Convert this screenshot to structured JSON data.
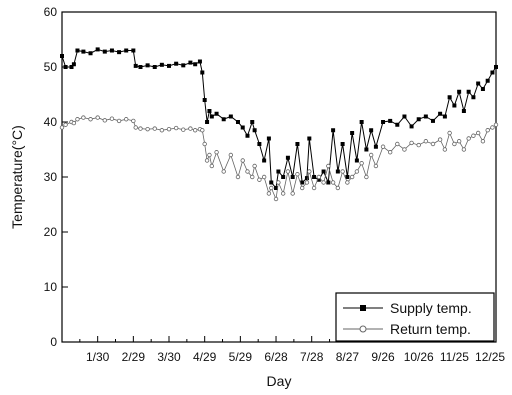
{
  "chart_data": {
    "type": "line",
    "xlabel": "Day",
    "ylabel": "Temperature(°C)",
    "xlim": [
      0,
      365
    ],
    "ylim": [
      0,
      60
    ],
    "x_ticks": [
      {
        "label": "1/30",
        "x": 30
      },
      {
        "label": "2/29",
        "x": 60
      },
      {
        "label": "3/30",
        "x": 90
      },
      {
        "label": "4/29",
        "x": 120
      },
      {
        "label": "5/29",
        "x": 150
      },
      {
        "label": "6/28",
        "x": 180
      },
      {
        "label": "7/28",
        "x": 210
      },
      {
        "label": "8/27",
        "x": 240
      },
      {
        "label": "9/26",
        "x": 270
      },
      {
        "label": "10/26",
        "x": 300
      },
      {
        "label": "11/25",
        "x": 330
      },
      {
        "label": "12/25",
        "x": 360
      }
    ],
    "y_ticks": [
      0,
      10,
      20,
      30,
      40,
      50,
      60
    ],
    "legend_position": "bottom-right",
    "series": [
      {
        "name": "Supply temp.",
        "color": "#000000",
        "marker": "filled-square",
        "x": [
          0,
          3,
          8,
          10,
          13,
          18,
          24,
          30,
          36,
          42,
          48,
          54,
          60,
          62,
          66,
          72,
          78,
          84,
          90,
          96,
          102,
          108,
          112,
          116,
          118,
          120,
          122,
          124,
          126,
          130,
          136,
          142,
          148,
          152,
          156,
          160,
          162,
          166,
          170,
          174,
          176,
          180,
          182,
          186,
          190,
          194,
          198,
          202,
          206,
          208,
          212,
          216,
          220,
          224,
          228,
          232,
          236,
          240,
          244,
          248,
          252,
          256,
          260,
          264,
          270,
          276,
          282,
          288,
          294,
          300,
          306,
          312,
          318,
          322,
          326,
          330,
          334,
          338,
          342,
          346,
          350,
          354,
          358,
          362,
          365
        ],
        "values": [
          52,
          50,
          50,
          50.5,
          53,
          52.8,
          52.5,
          53.2,
          52.8,
          53,
          52.7,
          53,
          53,
          50.2,
          50,
          50.3,
          50,
          50.4,
          50.2,
          50.6,
          50.3,
          50.8,
          50.5,
          51,
          49,
          44,
          40,
          42,
          41,
          41.5,
          40.5,
          41,
          40,
          39,
          37.5,
          40,
          38.5,
          36,
          33,
          37,
          29,
          28,
          31,
          30,
          33.5,
          30,
          36,
          29,
          29.8,
          37,
          30,
          29.5,
          31,
          29,
          38.5,
          31,
          36,
          30,
          38,
          33,
          40,
          35,
          38.5,
          35.5,
          40,
          40.2,
          39.5,
          41,
          39.2,
          40.5,
          41,
          40.2,
          41.5,
          41,
          44.5,
          43,
          45.5,
          42,
          45.5,
          44.5,
          47,
          46,
          47.5,
          49,
          50
        ]
      },
      {
        "name": "Return temp.",
        "color": "#666666",
        "marker": "open-circle",
        "x": [
          0,
          3,
          8,
          10,
          13,
          18,
          24,
          30,
          36,
          42,
          48,
          54,
          60,
          62,
          66,
          72,
          78,
          84,
          90,
          96,
          102,
          108,
          112,
          116,
          118,
          120,
          122,
          124,
          126,
          130,
          136,
          142,
          148,
          152,
          156,
          160,
          162,
          166,
          170,
          174,
          176,
          180,
          182,
          186,
          190,
          194,
          198,
          202,
          206,
          208,
          212,
          216,
          220,
          224,
          228,
          232,
          236,
          240,
          244,
          248,
          252,
          256,
          260,
          264,
          270,
          276,
          282,
          288,
          294,
          300,
          306,
          312,
          318,
          322,
          326,
          330,
          334,
          338,
          342,
          346,
          350,
          354,
          358,
          362,
          365
        ],
        "values": [
          39,
          39.5,
          40,
          39.8,
          40.5,
          40.8,
          40.5,
          40.8,
          40.3,
          40.6,
          40.2,
          40.5,
          40.2,
          39,
          38.8,
          38.7,
          38.8,
          38.5,
          38.7,
          38.9,
          38.6,
          38.8,
          38.5,
          38.7,
          38.5,
          36,
          33,
          34,
          32,
          34.5,
          31,
          34,
          30,
          33,
          31,
          30,
          32,
          29.5,
          30,
          27,
          28,
          26,
          29,
          27,
          31,
          27,
          30.5,
          28,
          29,
          31,
          28,
          30,
          29,
          32,
          29,
          28,
          31,
          29,
          30,
          31,
          32.5,
          30,
          34,
          32,
          35.5,
          34.5,
          36,
          35,
          36.2,
          35.8,
          36.5,
          36,
          36.8,
          35,
          38,
          36,
          36.5,
          35,
          37,
          37.5,
          38,
          36.5,
          38.5,
          39,
          39.5
        ]
      }
    ]
  }
}
